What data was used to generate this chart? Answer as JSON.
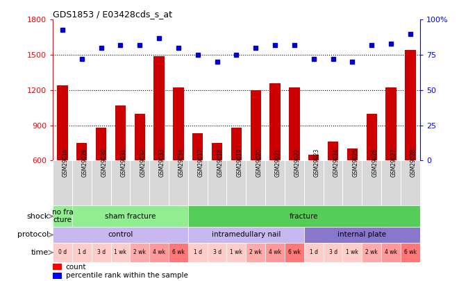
{
  "title": "GDS1853 / E03428cds_s_at",
  "samples": [
    "GSM29016",
    "GSM29029",
    "GSM29030",
    "GSM29031",
    "GSM29032",
    "GSM29033",
    "GSM29034",
    "GSM29017",
    "GSM29018",
    "GSM29019",
    "GSM29020",
    "GSM29021",
    "GSM29022",
    "GSM29023",
    "GSM29024",
    "GSM29025",
    "GSM29026",
    "GSM29027",
    "GSM29028"
  ],
  "counts": [
    1240,
    750,
    880,
    1070,
    1000,
    1490,
    1220,
    830,
    750,
    880,
    1200,
    1260,
    1220,
    650,
    760,
    700,
    1000,
    1220,
    1540
  ],
  "percentiles": [
    93,
    72,
    80,
    82,
    82,
    87,
    80,
    75,
    70,
    75,
    80,
    82,
    82,
    72,
    72,
    70,
    82,
    83,
    90
  ],
  "ylim_left": [
    600,
    1800
  ],
  "ylim_right": [
    0,
    100
  ],
  "yticks_left": [
    600,
    900,
    1200,
    1500,
    1800
  ],
  "yticks_right": [
    0,
    25,
    50,
    75,
    100
  ],
  "bar_color": "#cc0000",
  "dot_color": "#0000cc",
  "bg_color": "#ffffff",
  "sample_box_color": "#d8d8d8",
  "shock_configs": [
    {
      "text": "no fra\ncture",
      "start": 0,
      "end": 1,
      "color": "#90ee90"
    },
    {
      "text": "sham fracture",
      "start": 1,
      "end": 7,
      "color": "#90ee90"
    },
    {
      "text": "fracture",
      "start": 7,
      "end": 19,
      "color": "#55cc55"
    }
  ],
  "protocol_configs": [
    {
      "text": "control",
      "start": 0,
      "end": 7,
      "color": "#c8b8f0"
    },
    {
      "text": "intramedullary nail",
      "start": 7,
      "end": 13,
      "color": "#c8b8f0"
    },
    {
      "text": "internal plate",
      "start": 13,
      "end": 19,
      "color": "#8878cc"
    }
  ],
  "time_labels": [
    "0 d",
    "1 d",
    "3 d",
    "1 wk",
    "2 wk",
    "4 wk",
    "6 wk",
    "1 d",
    "3 d",
    "1 wk",
    "2 wk",
    "4 wk",
    "6 wk",
    "1 d",
    "3 d",
    "1 wk",
    "2 wk",
    "4 wk",
    "6 wk"
  ],
  "time_colors": [
    "#ffcccc",
    "#ffcccc",
    "#ffcccc",
    "#ffcccc",
    "#ffaaaa",
    "#ff9999",
    "#ff7777",
    "#ffcccc",
    "#ffcccc",
    "#ffcccc",
    "#ffaaaa",
    "#ff9999",
    "#ff7777",
    "#ffcccc",
    "#ffcccc",
    "#ffcccc",
    "#ffaaaa",
    "#ff9999",
    "#ff7777"
  ]
}
